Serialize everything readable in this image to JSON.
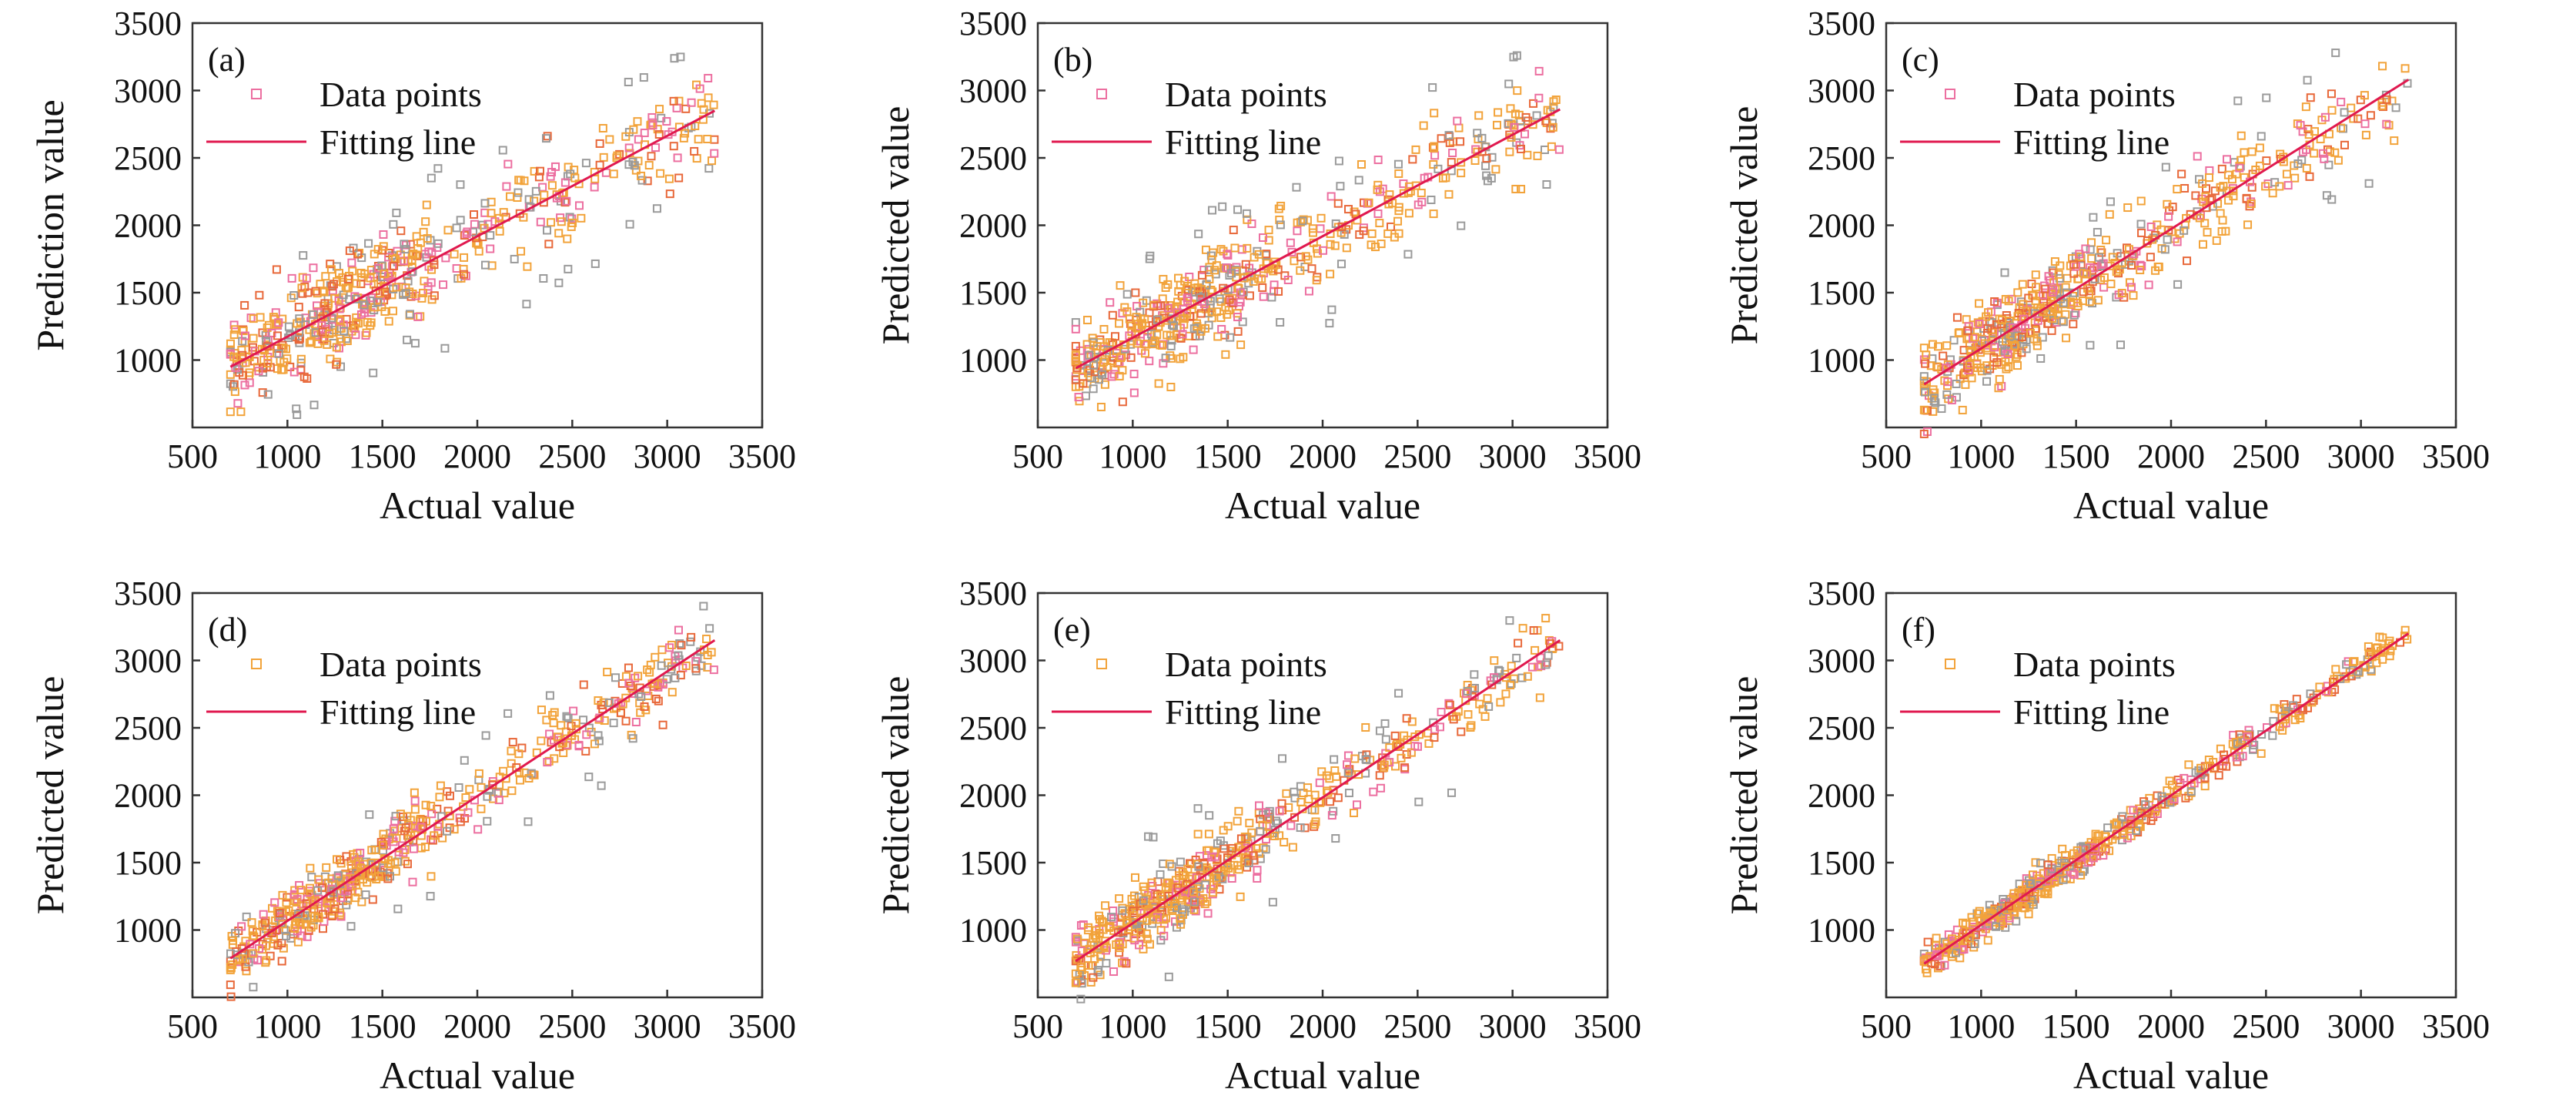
{
  "figure": {
    "panel_count": 6
  },
  "colors": {
    "axis": "#333333",
    "fit_line": "#e0194f",
    "point_orange": "#f2a33a",
    "point_pink": "#ec6fa0",
    "point_gray": "#9a9a9a",
    "point_red": "#e8683a"
  },
  "chart_data": [
    {
      "type": "scatter",
      "panel_label": "(a)",
      "xlabel": "Actual value",
      "ylabel": "Prediction value",
      "xlim": [
        500,
        3500
      ],
      "ylim": [
        500,
        3500
      ],
      "xticks": [
        500,
        1000,
        1500,
        2000,
        2500,
        3000,
        3500
      ],
      "yticks": [
        1000,
        1500,
        2000,
        2500,
        3000,
        3500
      ],
      "legend": {
        "position": "top-left",
        "points_label": "Data points",
        "line_label": "Fitting line"
      },
      "fit_line": {
        "x": [
          700,
          3250
        ],
        "y": [
          950,
          2850
        ]
      },
      "points": {
        "n": 560,
        "x_range": [
          700,
          3250
        ],
        "spread": 175,
        "outliers": 22,
        "seed": 11
      }
    },
    {
      "type": "scatter",
      "panel_label": "(b)",
      "xlabel": "Actual value",
      "ylabel": "Predicted value",
      "xlim": [
        500,
        3500
      ],
      "ylim": [
        500,
        3500
      ],
      "xticks": [
        500,
        1000,
        1500,
        2000,
        2500,
        3000,
        3500
      ],
      "yticks": [
        1000,
        1500,
        2000,
        2500,
        3000,
        3500
      ],
      "legend": {
        "position": "top-left",
        "points_label": "Data points",
        "line_label": "Fitting line"
      },
      "fit_line": {
        "x": [
          700,
          3250
        ],
        "y": [
          940,
          2860
        ]
      },
      "points": {
        "n": 560,
        "x_range": [
          700,
          3250
        ],
        "spread": 165,
        "outliers": 18,
        "seed": 23
      }
    },
    {
      "type": "scatter",
      "panel_label": "(c)",
      "xlabel": "Actual value",
      "ylabel": "Predicted value",
      "xlim": [
        500,
        3500
      ],
      "ylim": [
        500,
        3500
      ],
      "xticks": [
        500,
        1000,
        1500,
        2000,
        2500,
        3000,
        3500
      ],
      "yticks": [
        1000,
        1500,
        2000,
        2500,
        3000,
        3500
      ],
      "legend": {
        "position": "top-left",
        "points_label": "Data points",
        "line_label": "Fitting line"
      },
      "fit_line": {
        "x": [
          700,
          3250
        ],
        "y": [
          820,
          3080
        ]
      },
      "points": {
        "n": 560,
        "x_range": [
          700,
          3250
        ],
        "spread": 150,
        "outliers": 14,
        "seed": 37
      }
    },
    {
      "type": "scatter",
      "panel_label": "(d)",
      "xlabel": "Actual value",
      "ylabel": "Predicted value",
      "xlim": [
        500,
        3500
      ],
      "ylim": [
        500,
        3500
      ],
      "xticks": [
        500,
        1000,
        1500,
        2000,
        2500,
        3000,
        3500
      ],
      "yticks": [
        1000,
        1500,
        2000,
        2500,
        3000,
        3500
      ],
      "legend": {
        "position": "top-left",
        "points_label": "Data points",
        "line_label": "Fitting line"
      },
      "fit_line": {
        "x": [
          700,
          3250
        ],
        "y": [
          790,
          3150
        ]
      },
      "points": {
        "n": 560,
        "x_range": [
          700,
          3250
        ],
        "spread": 115,
        "outliers": 12,
        "seed": 41
      }
    },
    {
      "type": "scatter",
      "panel_label": "(e)",
      "xlabel": "Actual value",
      "ylabel": "Predicted value",
      "xlim": [
        500,
        3500
      ],
      "ylim": [
        500,
        3500
      ],
      "xticks": [
        500,
        1000,
        1500,
        2000,
        2500,
        3000,
        3500
      ],
      "yticks": [
        1000,
        1500,
        2000,
        2500,
        3000,
        3500
      ],
      "legend": {
        "position": "top-left",
        "points_label": "Data points",
        "line_label": "Fitting line"
      },
      "fit_line": {
        "x": [
          700,
          3250
        ],
        "y": [
          770,
          3150
        ]
      },
      "points": {
        "n": 560,
        "x_range": [
          700,
          3250
        ],
        "spread": 135,
        "outliers": 12,
        "seed": 53
      }
    },
    {
      "type": "scatter",
      "panel_label": "(f)",
      "xlabel": "Actual value",
      "ylabel": "Predicted value",
      "xlim": [
        500,
        3500
      ],
      "ylim": [
        500,
        3500
      ],
      "xticks": [
        500,
        1000,
        1500,
        2000,
        2500,
        3000,
        3500
      ],
      "yticks": [
        1000,
        1500,
        2000,
        2500,
        3000,
        3500
      ],
      "legend": {
        "position": "top-left",
        "points_label": "Data points",
        "line_label": "Fitting line"
      },
      "fit_line": {
        "x": [
          700,
          3250
        ],
        "y": [
          750,
          3200
        ]
      },
      "points": {
        "n": 560,
        "x_range": [
          700,
          3250
        ],
        "spread": 55,
        "outliers": 0,
        "seed": 67
      }
    }
  ]
}
